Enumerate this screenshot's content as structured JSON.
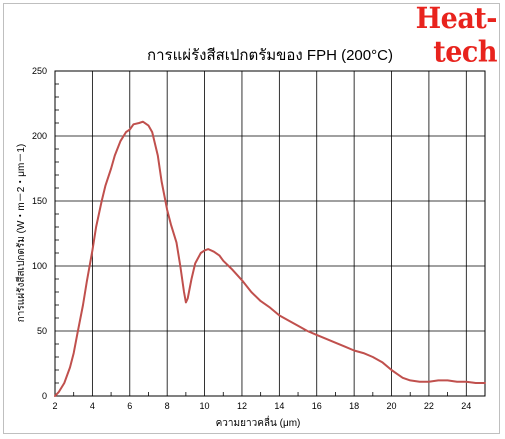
{
  "brand": {
    "name": "Heat-tech",
    "color": "#e8231d"
  },
  "chart_data": {
    "type": "line",
    "title": "การแผ่รังสีสเปกตรัมของ FPH (200°C)",
    "xlabel": "ความยาวคลื่น (μm)",
    "ylabel": "การแผ่รังสีสเปกตรัม (W・m－2・μm－1)",
    "xlim": [
      2,
      25
    ],
    "ylim": [
      0,
      250
    ],
    "xticks": [
      "2",
      "4",
      "6",
      "8",
      "10",
      "12",
      "14",
      "16",
      "18",
      "20",
      "22",
      "24"
    ],
    "yticks": [
      "0",
      "50",
      "100",
      "150",
      "200",
      "250"
    ],
    "grid": true,
    "line_color": "#c0504d",
    "series": [
      {
        "x": [
          2.0,
          2.2,
          2.5,
          2.8,
          3.0,
          3.2,
          3.5,
          3.7,
          4.0,
          4.2,
          4.5,
          4.7,
          5.0,
          5.2,
          5.5,
          5.8,
          6.0,
          6.2,
          6.5,
          6.7,
          7.0,
          7.2,
          7.5,
          7.7,
          8.0,
          8.2,
          8.5,
          8.7,
          8.9,
          9.0,
          9.1,
          9.3,
          9.5,
          9.8,
          10.0,
          10.2,
          10.5,
          10.8,
          11.0,
          11.5,
          12.0,
          12.5,
          13.0,
          13.5,
          14.0,
          14.5,
          15.0,
          15.5,
          16.0,
          16.5,
          17.0,
          17.5,
          18.0,
          18.5,
          19.0,
          19.5,
          20.0,
          20.3,
          20.6,
          21.0,
          21.5,
          22.0,
          22.5,
          23.0,
          23.5,
          24.0,
          24.5,
          25.0
        ],
        "y": [
          0,
          3,
          10,
          22,
          33,
          48,
          70,
          88,
          112,
          130,
          150,
          162,
          175,
          185,
          196,
          203,
          205,
          209,
          210,
          211,
          208,
          203,
          185,
          165,
          143,
          132,
          118,
          100,
          80,
          72,
          75,
          90,
          102,
          110,
          112,
          113,
          111,
          108,
          104,
          97,
          89,
          80,
          73,
          68,
          62,
          58,
          54,
          50,
          47,
          44,
          41,
          38,
          35,
          33,
          30,
          26,
          20,
          17,
          14,
          12,
          11,
          11,
          12,
          12,
          11,
          11,
          10,
          10
        ]
      }
    ]
  }
}
